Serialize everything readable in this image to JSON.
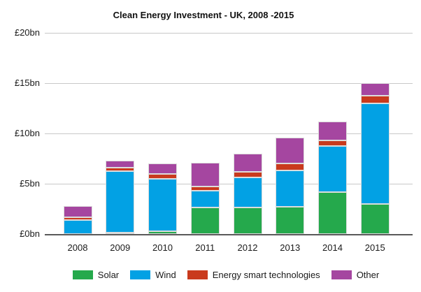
{
  "title": "Clean Energy Investment - UK, 2008 -2015",
  "colors": {
    "solar": "#25A94C",
    "wind": "#02A1E4",
    "energy_smart": "#C93A1D",
    "other": "#A546A0",
    "gridline": "#C8C8C8",
    "axis": "#5A5A5A",
    "text": "#1a1a1a"
  },
  "chart_data": {
    "type": "bar",
    "stacked": true,
    "title": "Clean Energy Investment - UK, 2008 -2015",
    "categories": [
      "2008",
      "2009",
      "2010",
      "2011",
      "2012",
      "2013",
      "2014",
      "2015"
    ],
    "series": [
      {
        "name": "Solar",
        "color": "#25A94C",
        "values": [
          0,
          0.15,
          0.3,
          2.65,
          2.65,
          2.7,
          4.15,
          3.0
        ]
      },
      {
        "name": "Wind",
        "color": "#02A1E4",
        "values": [
          1.4,
          6.1,
          5.2,
          1.65,
          3.0,
          3.6,
          4.6,
          10.0
        ]
      },
      {
        "name": "Energy smart technologies",
        "color": "#C93A1D",
        "values": [
          0.25,
          0.35,
          0.5,
          0.4,
          0.55,
          0.7,
          0.6,
          0.75
        ]
      },
      {
        "name": "Other",
        "color": "#A546A0",
        "values": [
          1.15,
          0.7,
          1.05,
          2.4,
          1.8,
          2.6,
          1.85,
          1.25
        ]
      }
    ],
    "totals": [
      2.8,
      7.3,
      7.05,
      7.1,
      8.0,
      9.6,
      11.2,
      15.0
    ],
    "xlabel": "",
    "ylabel": "",
    "ylim": [
      0,
      20
    ],
    "y_ticks": [
      {
        "value": 0,
        "label": "£0bn"
      },
      {
        "value": 5,
        "label": "£5bn"
      },
      {
        "value": 10,
        "label": "£10bn"
      },
      {
        "value": 15,
        "label": "£15bn"
      },
      {
        "value": 20,
        "label": "£20bn"
      }
    ],
    "grid": true,
    "legend_position": "bottom"
  }
}
